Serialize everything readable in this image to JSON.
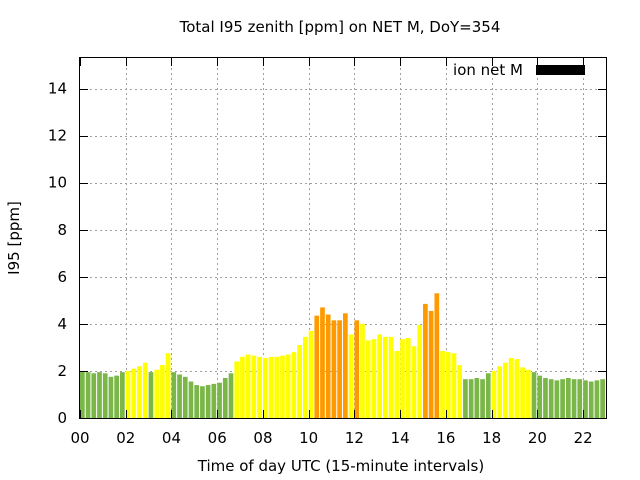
{
  "chart_data": {
    "type": "bar",
    "title": "Total I95 zenith [ppm] on NET M, DoY=354",
    "xlabel": "Time of day UTC (15-minute intervals)",
    "ylabel": "I95 [ppm]",
    "legend": {
      "label": "ion net M",
      "color": "#000000",
      "placement": "top-right"
    },
    "grid": true,
    "xlim": [
      0,
      23
    ],
    "ylim": [
      0,
      15.3
    ],
    "x_ticks": [
      {
        "value": 0,
        "label": "00"
      },
      {
        "value": 2,
        "label": "02"
      },
      {
        "value": 4,
        "label": "04"
      },
      {
        "value": 6,
        "label": "06"
      },
      {
        "value": 8,
        "label": "08"
      },
      {
        "value": 10,
        "label": "10"
      },
      {
        "value": 12,
        "label": "12"
      },
      {
        "value": 14,
        "label": "14"
      },
      {
        "value": 16,
        "label": "16"
      },
      {
        "value": 18,
        "label": "18"
      },
      {
        "value": 20,
        "label": "20"
      },
      {
        "value": 22,
        "label": "22"
      }
    ],
    "y_ticks": [
      {
        "value": 0,
        "label": "0"
      },
      {
        "value": 2,
        "label": "2"
      },
      {
        "value": 4,
        "label": "4"
      },
      {
        "value": 6,
        "label": "6"
      },
      {
        "value": 8,
        "label": "8"
      },
      {
        "value": 10,
        "label": "10"
      },
      {
        "value": 12,
        "label": "12"
      },
      {
        "value": 14,
        "label": "14"
      }
    ],
    "bar_colors": {
      "low": "#7ab648",
      "medium": "#ffff00",
      "high": "#ff9900"
    },
    "interval_hours": 0.25,
    "values": [
      2.0,
      1.95,
      1.9,
      1.95,
      1.9,
      1.75,
      1.8,
      1.95,
      2.0,
      2.1,
      2.2,
      2.35,
      1.95,
      2.05,
      2.25,
      2.75,
      1.95,
      1.85,
      1.75,
      1.55,
      1.4,
      1.35,
      1.4,
      1.45,
      1.5,
      1.7,
      1.9,
      2.4,
      2.6,
      2.7,
      2.65,
      2.6,
      2.55,
      2.6,
      2.6,
      2.65,
      2.7,
      2.8,
      3.1,
      3.45,
      3.7,
      4.35,
      4.7,
      4.4,
      4.15,
      4.15,
      4.45,
      3.55,
      4.15,
      4.0,
      3.3,
      3.35,
      3.55,
      3.45,
      3.45,
      2.85,
      3.35,
      3.4,
      3.05,
      3.95,
      4.85,
      4.55,
      5.3,
      2.85,
      2.8,
      2.75,
      2.25,
      1.65,
      1.65,
      1.7,
      1.65,
      1.9,
      2.0,
      2.2,
      2.35,
      2.55,
      2.5,
      2.15,
      2.05,
      1.95,
      1.8,
      1.7,
      1.65,
      1.6,
      1.65,
      1.7,
      1.65,
      1.65,
      1.6,
      1.55,
      1.6,
      1.65
    ],
    "levels": [
      "low",
      "low",
      "low",
      "low",
      "low",
      "low",
      "low",
      "low",
      "medium",
      "medium",
      "medium",
      "medium",
      "low",
      "medium",
      "medium",
      "medium",
      "low",
      "low",
      "low",
      "low",
      "low",
      "low",
      "low",
      "low",
      "low",
      "low",
      "low",
      "medium",
      "medium",
      "medium",
      "medium",
      "medium",
      "medium",
      "medium",
      "medium",
      "medium",
      "medium",
      "medium",
      "medium",
      "medium",
      "medium",
      "high",
      "high",
      "high",
      "high",
      "high",
      "high",
      "medium",
      "high",
      "medium",
      "medium",
      "medium",
      "medium",
      "medium",
      "medium",
      "medium",
      "medium",
      "medium",
      "medium",
      "medium",
      "high",
      "high",
      "high",
      "medium",
      "medium",
      "medium",
      "medium",
      "low",
      "low",
      "low",
      "low",
      "low",
      "medium",
      "medium",
      "medium",
      "medium",
      "medium",
      "medium",
      "medium",
      "low",
      "low",
      "low",
      "low",
      "low",
      "low",
      "low",
      "low",
      "low",
      "low",
      "low",
      "low",
      "low"
    ]
  }
}
